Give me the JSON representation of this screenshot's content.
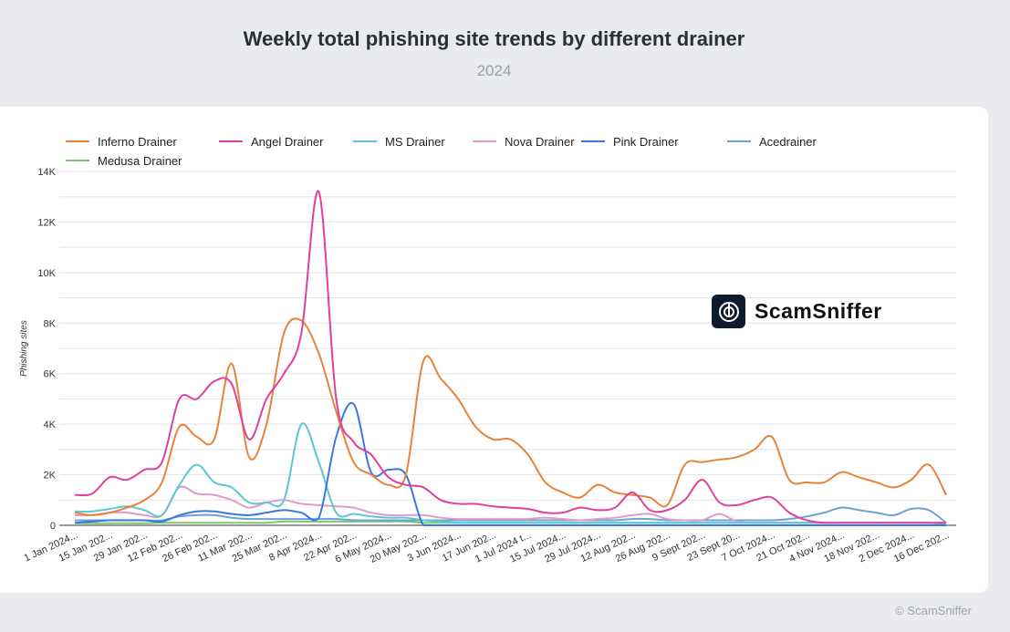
{
  "title": "Weekly total phishing site trends by different drainer",
  "subtitle": "2024",
  "watermark": "© ScamSniffer",
  "logo_text": "ScamSniffer",
  "chart_data": {
    "type": "line",
    "title": "Weekly total phishing site trends by different drainer",
    "subtitle": "2024",
    "ylabel": "Phishing sites",
    "xlabel": "",
    "ylim": [
      0,
      14000
    ],
    "yticks": [
      "0",
      "2K",
      "4K",
      "6K",
      "8K",
      "10K",
      "12K",
      "14K"
    ],
    "grid": true,
    "legend": "top-left",
    "x_tick_labels": [
      "1 Jan 2024...",
      "15 Jan 202...",
      "29 Jan 202...",
      "12 Feb 202...",
      "26 Feb 202...",
      "11 Mar 202...",
      "25 Mar 202...",
      "8 Apr 2024...",
      "22 Apr 202...",
      "6 May 2024...",
      "20 May 202...",
      "3 Jun 2024...",
      "17 Jun 202...",
      "1 Jul 2024 t...",
      "15 Jul 2024...",
      "29 Jul 2024...",
      "12 Aug 202...",
      "26 Aug 202...",
      "9 Sept 202...",
      "23 Sept 20...",
      "7 Oct 2024...",
      "21 Oct 202...",
      "4 Nov 2024...",
      "18 Nov 202...",
      "2 Dec 2024...",
      "16 Dec 202..."
    ],
    "x_weeks_per_tick": 2,
    "series": [
      {
        "name": "Inferno Drainer",
        "color": "#e8833a",
        "values": [
          500,
          400,
          500,
          700,
          1000,
          1700,
          3900,
          3500,
          3400,
          6400,
          2700,
          4000,
          7600,
          8100,
          6800,
          4500,
          2500,
          2000,
          1600,
          2000,
          6500,
          5800,
          5000,
          3900,
          3400,
          3400,
          2800,
          1700,
          1300,
          1100,
          1600,
          1300,
          1200,
          1100,
          800,
          2400,
          2500,
          2600,
          2700,
          3000,
          3500,
          1800,
          1700,
          1700,
          2100,
          1900,
          1700,
          1500,
          1800,
          2400,
          1200
        ]
      },
      {
        "name": "Angel Drainer",
        "color": "#e0409a",
        "values": [
          1200,
          1250,
          1900,
          1800,
          2200,
          2500,
          5000,
          5000,
          5700,
          5600,
          3400,
          5000,
          6000,
          7600,
          13200,
          5000,
          3300,
          2800,
          1900,
          1600,
          1500,
          1000,
          850,
          850,
          750,
          700,
          650,
          500,
          500,
          700,
          600,
          700,
          1300,
          600,
          600,
          1000,
          1800,
          900,
          800,
          1000,
          1100,
          500,
          200,
          100,
          100,
          100,
          100,
          100,
          100,
          100,
          100
        ]
      },
      {
        "name": "MS Drainer",
        "color": "#5bc8d0",
        "values": [
          550,
          550,
          650,
          750,
          600,
          400,
          1600,
          2400,
          1700,
          1500,
          900,
          900,
          1000,
          4000,
          2500,
          500,
          450,
          350,
          300,
          300,
          200,
          150,
          100,
          100,
          100,
          100,
          100,
          100,
          100,
          100,
          100,
          100,
          100,
          100,
          100,
          100,
          100,
          100,
          100,
          100,
          100,
          100,
          100,
          100,
          100,
          100,
          100,
          100,
          100,
          100,
          50
        ]
      },
      {
        "name": "Nova Drainer",
        "color": "#e09cc8",
        "values": [
          400,
          400,
          500,
          500,
          400,
          400,
          1500,
          1250,
          1200,
          1000,
          700,
          900,
          1000,
          850,
          800,
          750,
          700,
          500,
          400,
          400,
          400,
          300,
          250,
          250,
          250,
          250,
          250,
          300,
          250,
          200,
          250,
          300,
          400,
          450,
          250,
          200,
          200,
          450,
          150,
          100,
          100,
          100,
          100,
          100,
          100,
          100,
          100,
          100,
          100,
          100,
          100
        ]
      },
      {
        "name": "Pink Drainer",
        "color": "#3a78e0",
        "values": [
          100,
          150,
          200,
          200,
          200,
          150,
          400,
          550,
          550,
          450,
          400,
          500,
          600,
          500,
          300,
          3500,
          4800,
          2100,
          2200,
          2000,
          0,
          0,
          0,
          0,
          0,
          0,
          0,
          0,
          0,
          0,
          0,
          0,
          0,
          0,
          0,
          0,
          0,
          0,
          0,
          0,
          0,
          0,
          0,
          0,
          0,
          0,
          0,
          0,
          0,
          0,
          0
        ]
      },
      {
        "name": "Acedrainer",
        "color": "#6fa0d8",
        "values": [
          200,
          200,
          200,
          200,
          200,
          200,
          350,
          400,
          400,
          300,
          250,
          250,
          250,
          250,
          250,
          250,
          200,
          200,
          200,
          200,
          200,
          200,
          200,
          200,
          200,
          200,
          200,
          200,
          200,
          200,
          200,
          200,
          250,
          250,
          200,
          200,
          200,
          200,
          200,
          200,
          200,
          250,
          350,
          500,
          700,
          600,
          500,
          400,
          650,
          600,
          100
        ]
      },
      {
        "name": "Medusa Drainer",
        "color": "#7cc96c",
        "values": [
          80,
          80,
          80,
          80,
          80,
          100,
          100,
          100,
          100,
          100,
          100,
          100,
          150,
          150,
          150,
          150,
          150,
          150,
          150,
          150,
          100,
          100,
          100,
          100,
          100,
          100,
          100,
          100,
          100,
          100,
          100,
          100,
          100,
          100,
          100,
          100,
          100,
          100,
          100,
          100,
          100,
          100,
          100,
          100,
          100,
          100,
          100,
          100,
          100,
          100,
          50
        ]
      }
    ]
  }
}
